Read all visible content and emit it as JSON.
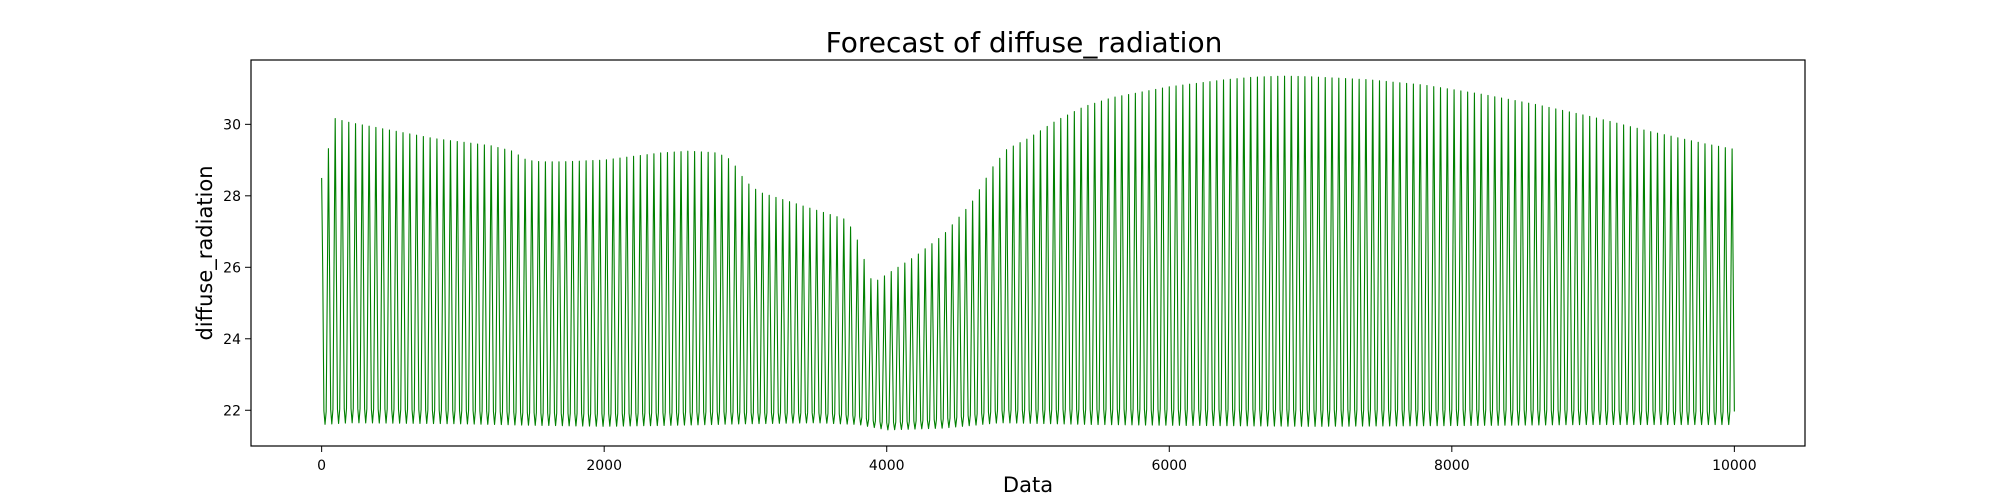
{
  "chart_data": {
    "type": "line",
    "title": "Forecast of diffuse_radiation",
    "xlabel": "Data",
    "ylabel": "diffuse_radiation",
    "xlim": [
      -500,
      10500
    ],
    "ylim": [
      21.0,
      31.8
    ],
    "xticks": [
      0,
      2000,
      4000,
      6000,
      8000,
      10000
    ],
    "xtick_labels": [
      "0",
      "2000",
      "4000",
      "6000",
      "8000",
      "10000"
    ],
    "yticks": [
      22,
      24,
      26,
      28,
      30
    ],
    "ytick_labels": [
      "22",
      "24",
      "26",
      "28",
      "30"
    ],
    "grid": false,
    "legend": "none",
    "colors": {
      "line": "#008000",
      "axes": "#000000",
      "background": "#ffffff"
    },
    "oscillation_period": 48,
    "series": [
      {
        "upper_envelope": {
          "x": [
            0,
            10,
            40,
            60,
            80,
            100,
            200,
            400,
            600,
            800,
            1000,
            1200,
            1350,
            1450,
            1550,
            1700,
            2000,
            2200,
            2400,
            2600,
            2800,
            2900,
            2950,
            3000,
            3100,
            3300,
            3500,
            3700,
            3750,
            3800,
            3850,
            3880,
            3920,
            4000,
            4200,
            4400,
            4600,
            4750,
            4850,
            5000,
            5200,
            5400,
            5600,
            5800,
            6000,
            6200,
            6400,
            6600,
            6800,
            7000,
            7400,
            7800,
            8200,
            8600,
            9000,
            9400,
            9800,
            10000
          ],
          "y": [
            28.5,
            29.8,
            28.8,
            30.1,
            30.2,
            30.15,
            30.05,
            29.9,
            29.75,
            29.6,
            29.5,
            29.4,
            29.25,
            29.0,
            28.95,
            28.95,
            29.0,
            29.1,
            29.2,
            29.25,
            29.2,
            29.0,
            28.7,
            28.4,
            28.1,
            27.85,
            27.6,
            27.35,
            27.1,
            26.7,
            26.1,
            25.7,
            25.6,
            25.8,
            26.3,
            26.9,
            27.8,
            28.8,
            29.3,
            29.6,
            30.1,
            30.5,
            30.75,
            30.9,
            31.05,
            31.15,
            31.25,
            31.32,
            31.35,
            31.33,
            31.25,
            31.1,
            30.85,
            30.55,
            30.2,
            29.8,
            29.45,
            29.3
          ]
        },
        "lower_envelope": {
          "x": [
            0,
            200,
            1000,
            1500,
            2000,
            2500,
            3000,
            3500,
            3800,
            4000,
            4400,
            4800,
            5500,
            6000,
            7000,
            8000,
            9000,
            10000
          ],
          "y": [
            21.6,
            21.65,
            21.62,
            21.58,
            21.55,
            21.58,
            21.62,
            21.65,
            21.6,
            21.45,
            21.5,
            21.65,
            21.6,
            21.58,
            21.55,
            21.57,
            21.6,
            21.6
          ]
        }
      }
    ]
  }
}
